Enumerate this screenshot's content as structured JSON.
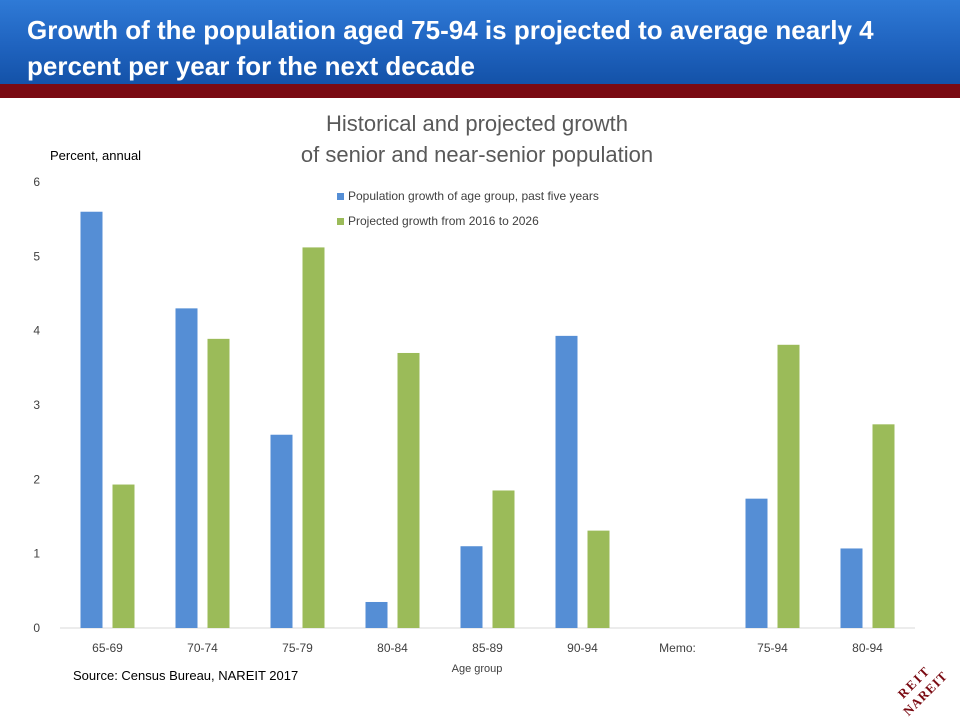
{
  "header": {
    "title": "Growth of the population aged 75-94 is projected to average nearly 4 percent per year for the next decade"
  },
  "chart_data": {
    "type": "bar",
    "title_lines": [
      "Historical and projected growth",
      "of senior and near-senior population"
    ],
    "ylabel": "Percent, annual",
    "xlabel": "Age group",
    "ylim": [
      0,
      6
    ],
    "yticks": [
      0,
      1,
      2,
      3,
      4,
      5,
      6
    ],
    "categories": [
      "65-69",
      "70-74",
      "75-79",
      "80-84",
      "85-89",
      "90-94",
      "Memo:",
      "75-94",
      "80-94"
    ],
    "series": [
      {
        "name": "Population growth of age group, past five years",
        "color": "#558ed5",
        "values": [
          5.6,
          4.3,
          2.6,
          0.35,
          1.1,
          3.93,
          null,
          1.74,
          1.07
        ]
      },
      {
        "name": "Projected growth from 2016 to 2026",
        "color": "#9bbb59",
        "values": [
          1.93,
          3.89,
          5.12,
          3.7,
          1.85,
          1.31,
          null,
          3.81,
          2.74
        ]
      }
    ],
    "grid": false,
    "legend_position": "top"
  },
  "source": "Source: Census Bureau, NAREIT 2017",
  "logo": {
    "text": "REIT NAREIT",
    "color": "#7a0a12"
  }
}
